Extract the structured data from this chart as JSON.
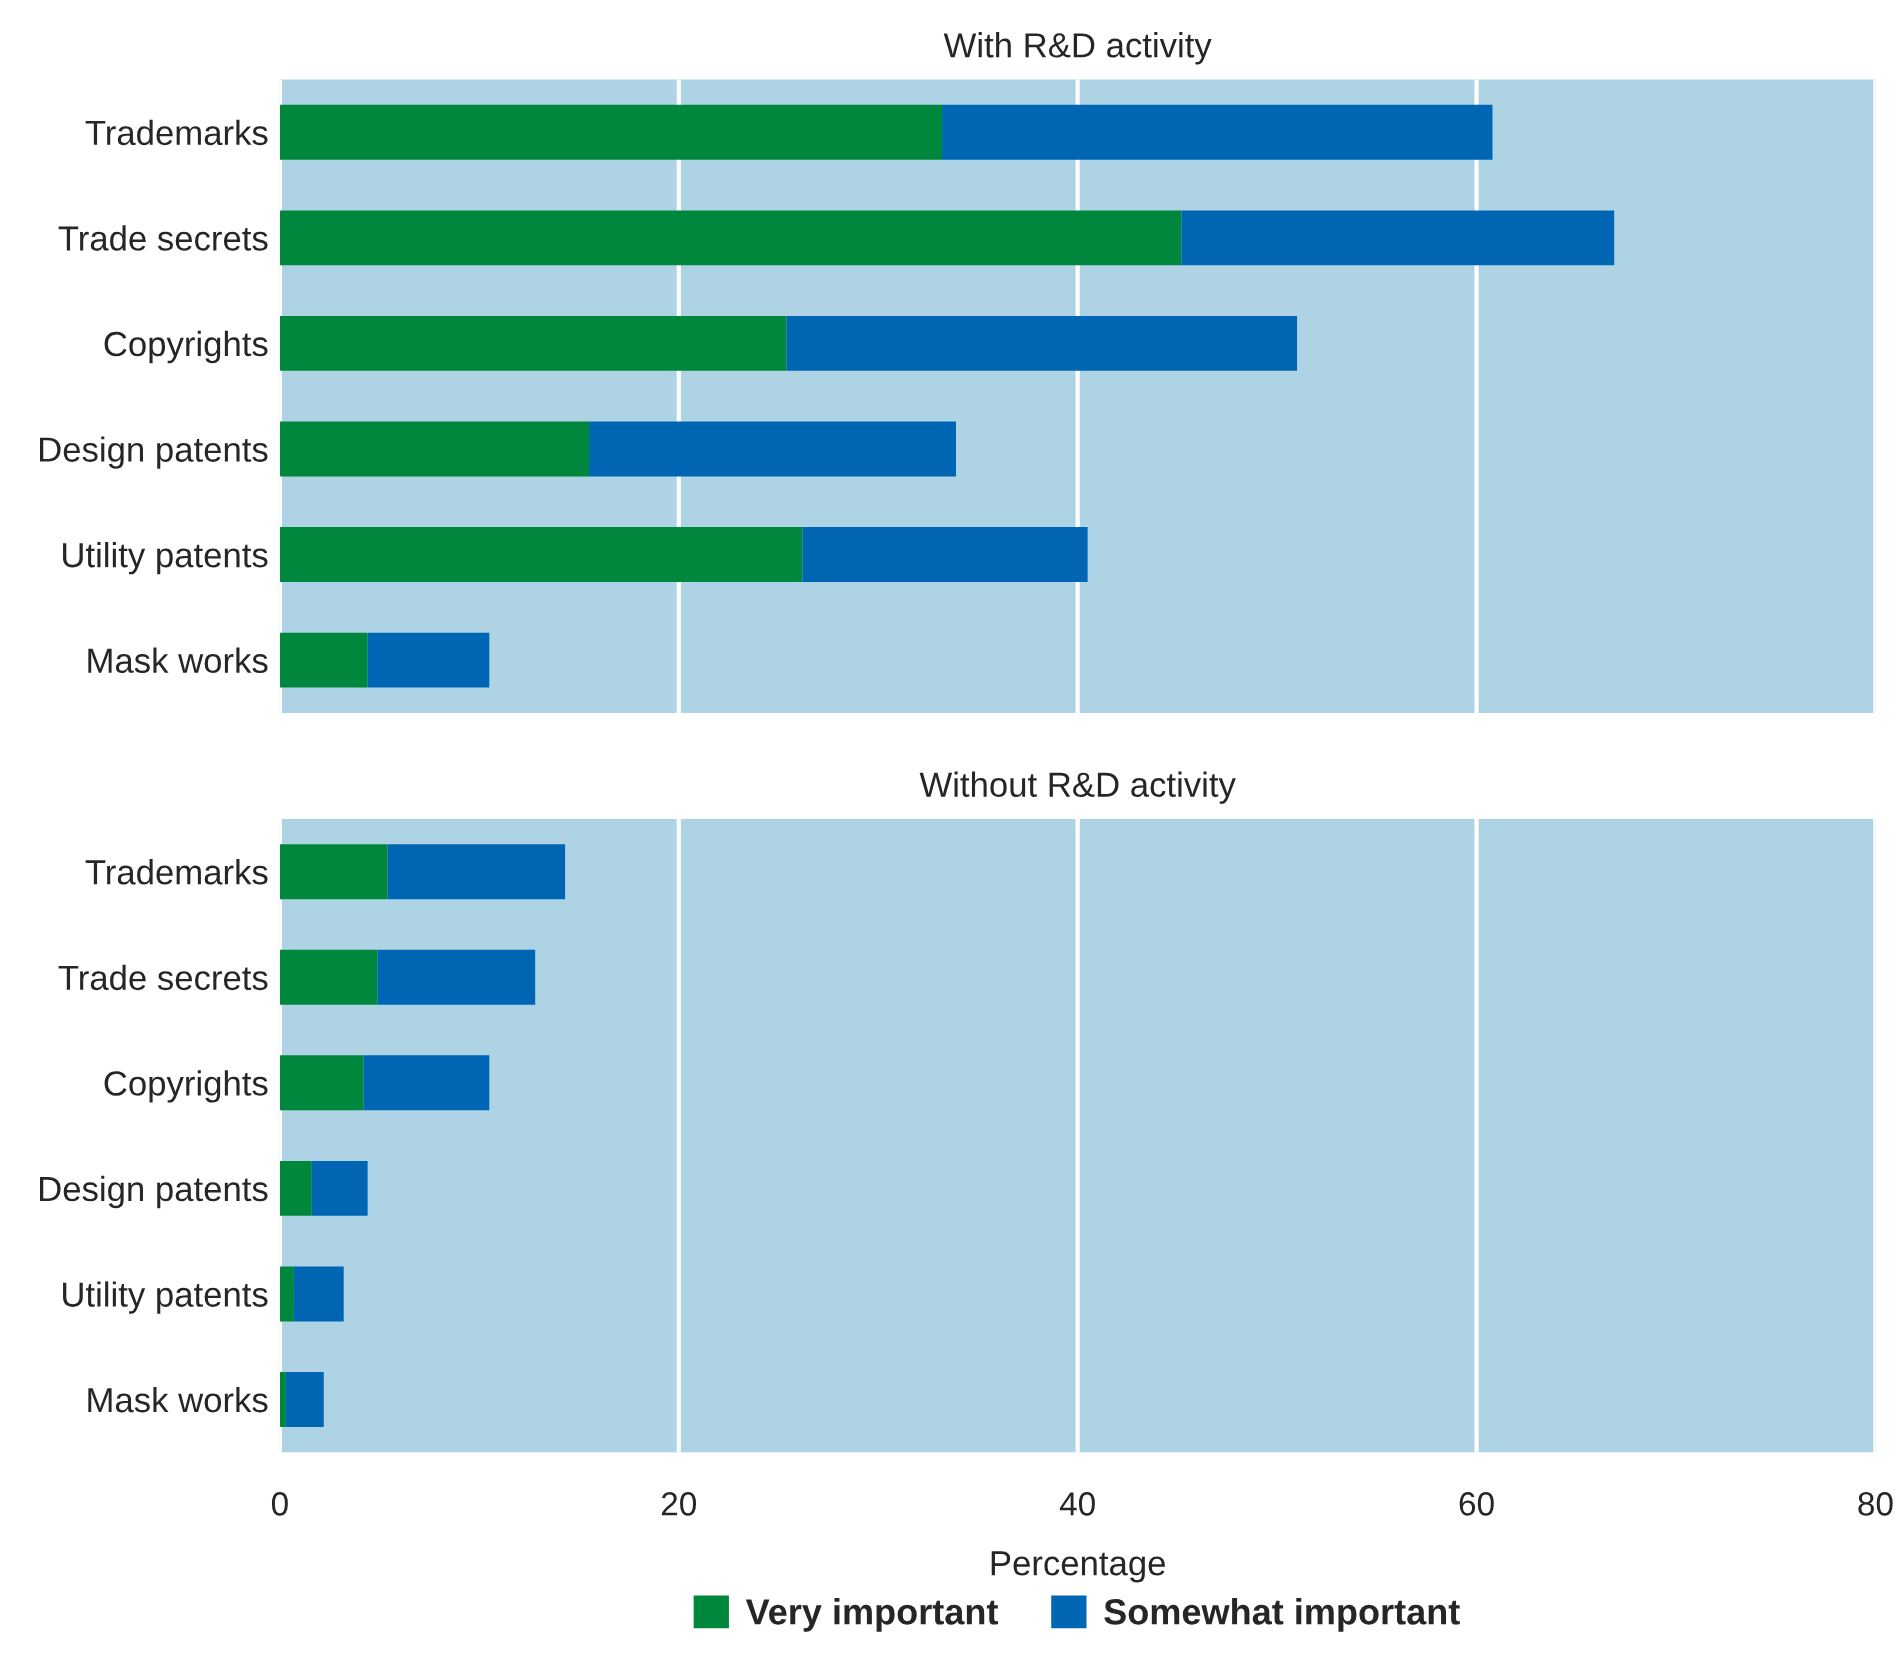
{
  "chart_data": [
    {
      "type": "bar",
      "orientation": "horizontal",
      "stacked": true,
      "title": "With R&D activity",
      "categories": [
        "Trademarks",
        "Trade secrets",
        "Copyrights",
        "Design patents",
        "Utility patents",
        "Mask works"
      ],
      "series": [
        {
          "name": "Very important",
          "color": "#00873e",
          "values": [
            33.2,
            45.2,
            25.4,
            15.5,
            26.2,
            4.4
          ]
        },
        {
          "name": "Somewhat important",
          "color": "#0066b3",
          "values": [
            27.6,
            21.7,
            25.6,
            18.4,
            14.3,
            6.1
          ]
        }
      ],
      "xlim": [
        0,
        80
      ],
      "xticks": [
        0,
        20,
        40,
        60,
        80
      ],
      "grid": "x",
      "tick_labels": "y",
      "legend": "bottom"
    },
    {
      "type": "bar",
      "orientation": "horizontal",
      "stacked": true,
      "title": "Without R&D activity",
      "xlabel": "Percentage",
      "categories": [
        "Trademarks",
        "Trade secrets",
        "Copyrights",
        "Design patents",
        "Utility patents",
        "Mask works"
      ],
      "series": [
        {
          "color": "#00873e",
          "values": [
            5.4,
            4.9,
            4.2,
            1.6,
            0.7,
            0.3
          ]
        },
        {
          "color": "#0066b3",
          "values": [
            8.9,
            7.9,
            6.3,
            2.8,
            2.5,
            1.9
          ]
        }
      ],
      "xlim": [
        0,
        80
      ],
      "xticks": [
        0,
        20,
        40,
        60,
        80
      ],
      "grid": "x"
    }
  ]
}
